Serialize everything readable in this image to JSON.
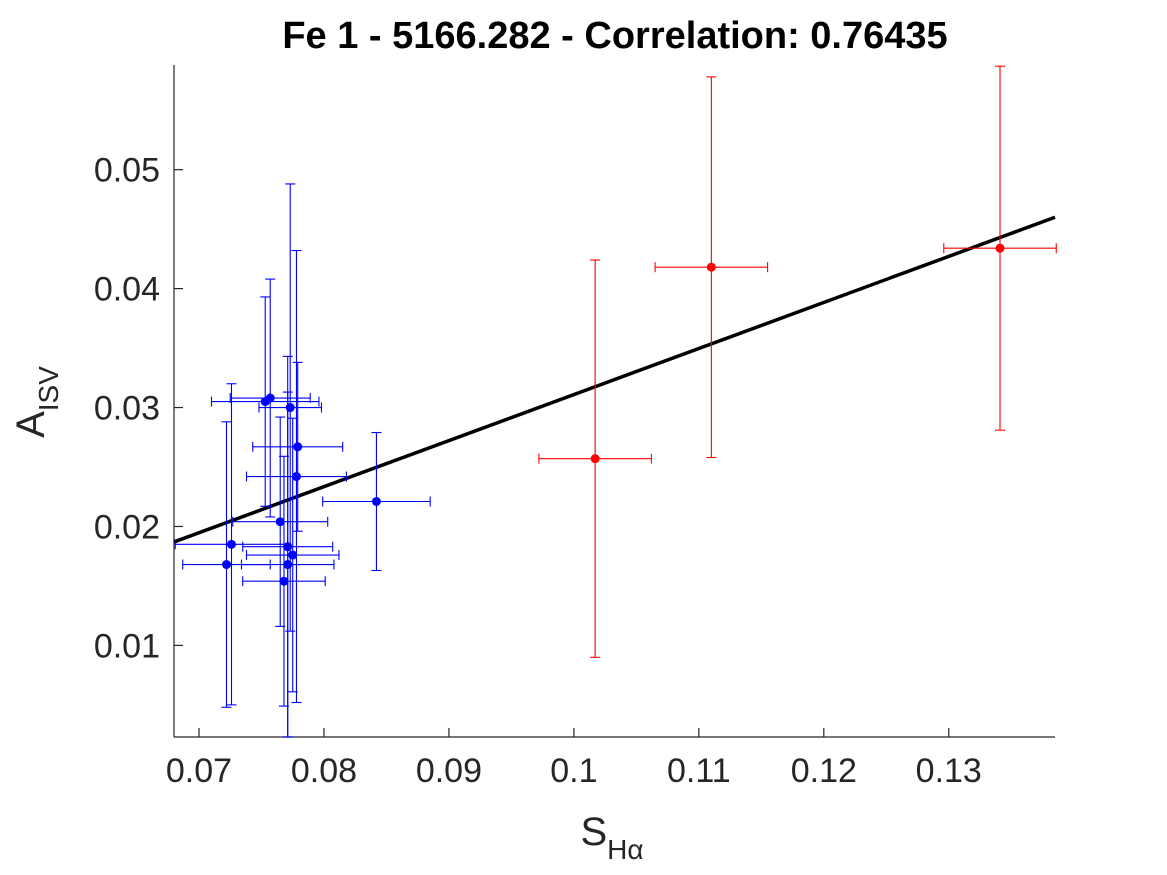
{
  "chart_data": {
    "type": "scatter",
    "title": "Fe 1 - 5166.282 - Correlation: 0.76435",
    "xlabel": {
      "main": "S",
      "sub": "Hα"
    },
    "ylabel": {
      "main": "A",
      "sub": "ISV"
    },
    "xlim": [
      0.068,
      0.1385
    ],
    "ylim": [
      0.0023,
      0.0588
    ],
    "xticks": [
      0.07,
      0.08,
      0.09,
      0.1,
      0.11,
      0.12,
      0.13
    ],
    "xtick_labels": [
      "0.07",
      "0.08",
      "0.09",
      "0.1",
      "0.11",
      "0.12",
      "0.13"
    ],
    "yticks": [
      0.01,
      0.02,
      0.03,
      0.04,
      0.05
    ],
    "ytick_labels": [
      "0.01",
      "0.02",
      "0.03",
      "0.04",
      "0.05"
    ],
    "grid": false,
    "fit_line": {
      "x": [
        0.068,
        0.1385
      ],
      "y": [
        0.0187,
        0.046
      ],
      "color": "#000000"
    },
    "series": [
      {
        "color": "#0000ff",
        "points": [
          {
            "x": 0.0722,
            "y": 0.0168,
            "xerr": 0.0035,
            "yerr": 0.012
          },
          {
            "x": 0.0726,
            "y": 0.0185,
            "xerr": 0.0045,
            "yerr": 0.0135
          },
          {
            "x": 0.0753,
            "y": 0.0305,
            "xerr": 0.0043,
            "yerr": 0.0088
          },
          {
            "x": 0.0757,
            "y": 0.0308,
            "xerr": 0.0032,
            "yerr": 0.01
          },
          {
            "x": 0.0765,
            "y": 0.0204,
            "xerr": 0.0038,
            "yerr": 0.0088
          },
          {
            "x": 0.0768,
            "y": 0.0154,
            "xerr": 0.0033,
            "yerr": 0.0105
          },
          {
            "x": 0.0771,
            "y": 0.0183,
            "xerr": 0.0036,
            "yerr": 0.016
          },
          {
            "x": 0.0771,
            "y": 0.0168,
            "xerr": 0.0037,
            "yerr": 0.0145
          },
          {
            "x": 0.0773,
            "y": 0.03,
            "xerr": 0.0025,
            "yerr": 0.0188
          },
          {
            "x": 0.0775,
            "y": 0.0176,
            "xerr": 0.0037,
            "yerr": 0.0115
          },
          {
            "x": 0.0778,
            "y": 0.0242,
            "xerr": 0.004,
            "yerr": 0.019
          },
          {
            "x": 0.0779,
            "y": 0.0267,
            "xerr": 0.0036,
            "yerr": 0.0071
          },
          {
            "x": 0.0842,
            "y": 0.0221,
            "xerr": 0.0043,
            "yerr": 0.0058
          }
        ]
      },
      {
        "color": "#ff0000",
        "points": [
          {
            "x": 0.1017,
            "y": 0.0257,
            "xerr": 0.0045,
            "yerr": 0.0167
          },
          {
            "x": 0.111,
            "y": 0.0418,
            "xerr": 0.0045,
            "yerr": 0.016
          },
          {
            "x": 0.1341,
            "y": 0.0434,
            "xerr": 0.0045,
            "yerr": 0.0153
          }
        ]
      }
    ]
  }
}
